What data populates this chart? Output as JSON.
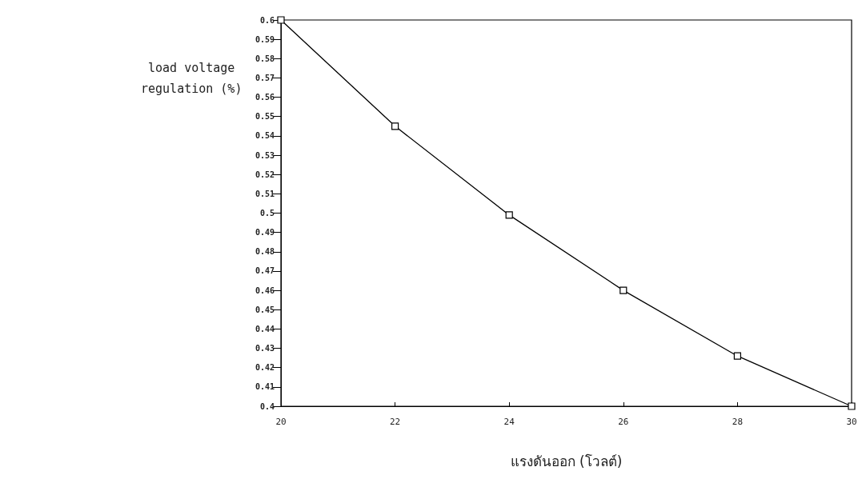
{
  "chart_data": {
    "type": "line",
    "xlabel": "แรงดันออก (โวลต์)",
    "ylabel": "load voltage\nregulation (%)",
    "x": [
      20,
      22,
      24,
      26,
      28,
      30
    ],
    "series": [
      {
        "color": "#000000",
        "values": [
          0.6,
          0.545,
          0.499,
          0.46,
          0.426,
          0.4
        ]
      }
    ],
    "xlim": [
      20,
      30
    ],
    "xticks": [
      20,
      22,
      24,
      26,
      28,
      30
    ],
    "ylim": [
      0.4,
      0.6
    ],
    "yticks": [
      0.4,
      0.41,
      0.42,
      0.43,
      0.44,
      0.45,
      0.46,
      0.47,
      0.48,
      0.49,
      0.5,
      0.51,
      0.52,
      0.53,
      0.54,
      0.55,
      0.56,
      0.57,
      0.58,
      0.59,
      0.6
    ],
    "grid": false,
    "marker": "square",
    "line_style": "solid"
  }
}
